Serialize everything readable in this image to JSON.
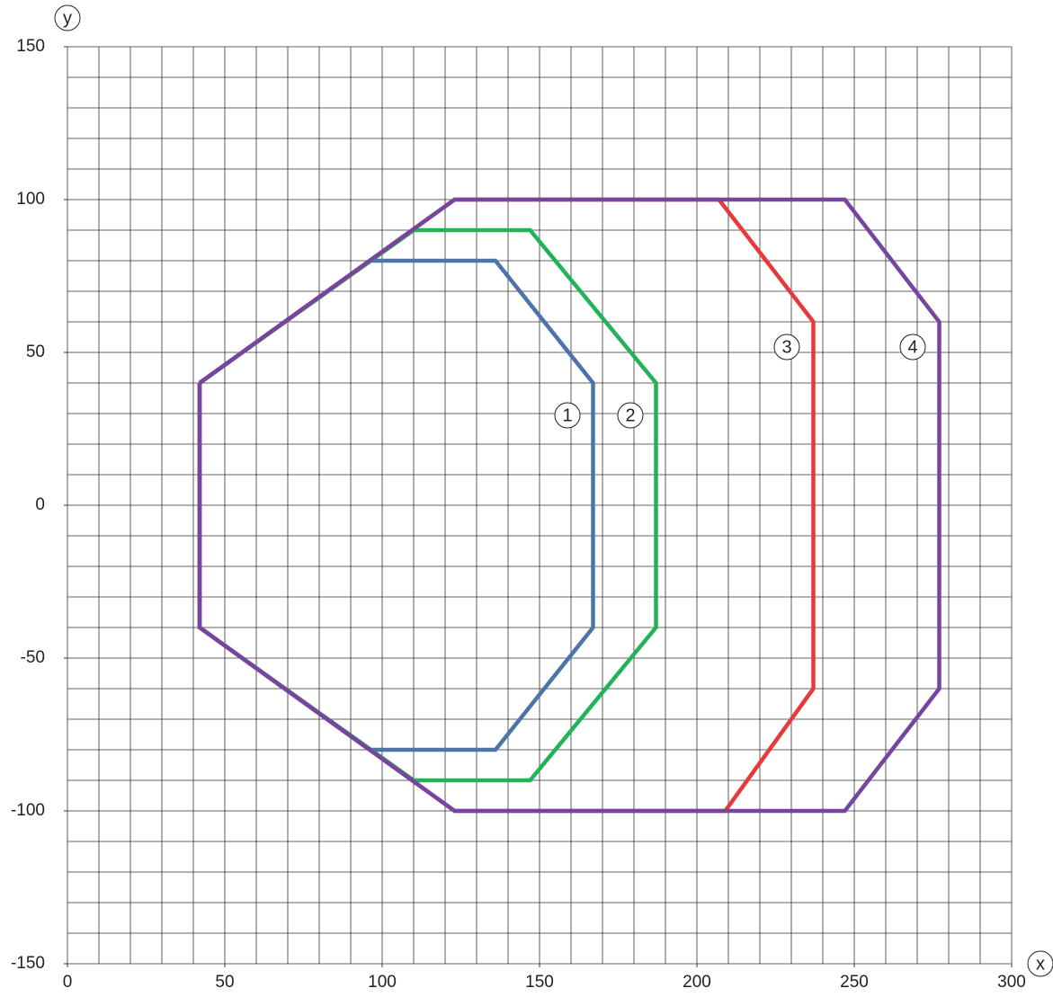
{
  "chart_data": {
    "type": "line",
    "x_label": "x",
    "y_label": "y",
    "xlim": [
      0,
      300
    ],
    "ylim": [
      -150,
      150
    ],
    "xticks": [
      0,
      50,
      100,
      150,
      200,
      250,
      300
    ],
    "yticks": [
      -150,
      -100,
      -50,
      0,
      50,
      100,
      150
    ],
    "x_minor_ticks": [
      0,
      10,
      20,
      30,
      40,
      50,
      60,
      70,
      80,
      90,
      100,
      110,
      120,
      130,
      140,
      150,
      160,
      170,
      180,
      190,
      200,
      210,
      220,
      230,
      240,
      250,
      260,
      270,
      280,
      290,
      300
    ],
    "y_minor_ticks": [
      -150,
      -140,
      -130,
      -120,
      -110,
      -100,
      -90,
      -80,
      -70,
      -60,
      -50,
      -40,
      -30,
      -20,
      -10,
      0,
      10,
      20,
      30,
      40,
      50,
      60,
      70,
      80,
      90,
      100,
      110,
      120,
      130,
      140,
      150
    ],
    "grid": true,
    "series": [
      {
        "name": "1",
        "color": "#4a74aa",
        "x": [
          42,
          96,
          136,
          167,
          167,
          136,
          96,
          42,
          42
        ],
        "values": [
          40,
          80,
          80,
          40,
          -40,
          -80,
          -80,
          -40,
          40
        ]
      },
      {
        "name": "2",
        "color": "#22b357",
        "x": [
          42,
          110,
          147,
          187,
          187,
          147,
          110,
          42,
          42
        ],
        "values": [
          40,
          90,
          90,
          40,
          -40,
          -90,
          -90,
          -40,
          40
        ]
      },
      {
        "name": "3",
        "color": "#e8393a",
        "x": [
          42,
          123,
          207,
          237,
          237,
          209,
          123,
          42,
          42
        ],
        "values": [
          40,
          100,
          100,
          60,
          -60,
          -100,
          -100,
          -40,
          40
        ]
      },
      {
        "name": "4",
        "color": "#7545a0",
        "x": [
          42,
          123,
          247,
          277,
          277,
          247,
          123,
          42,
          42
        ],
        "values": [
          40,
          100,
          100,
          60,
          -60,
          -100,
          -100,
          -40,
          40
        ]
      }
    ]
  }
}
